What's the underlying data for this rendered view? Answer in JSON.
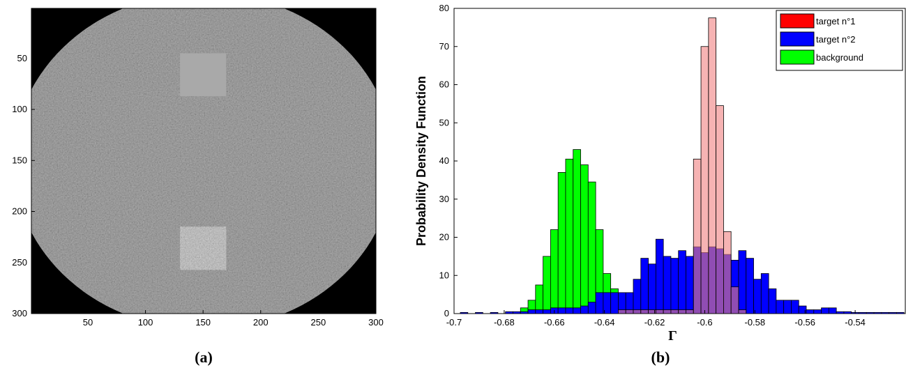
{
  "panel_a": {
    "caption": "(a)",
    "x_ticks": [
      "50",
      "100",
      "150",
      "200",
      "250",
      "300"
    ],
    "y_ticks": [
      "50",
      "100",
      "150",
      "200",
      "250",
      "300"
    ],
    "image_extent": [
      1,
      300
    ],
    "disk_radius": 165,
    "target_squares": [
      {
        "name": "target n°1",
        "x_range": [
          130,
          170
        ],
        "y_range": [
          45,
          87
        ]
      },
      {
        "name": "target n°2",
        "x_range": [
          130,
          170
        ],
        "y_range": [
          215,
          257
        ]
      }
    ]
  },
  "panel_b": {
    "caption": "(b)"
  },
  "chart_data": {
    "type": "bar",
    "xlabel": "Γ",
    "ylabel": "Probability Density Function",
    "xlim": [
      -0.7,
      -0.52
    ],
    "ylim": [
      0,
      80
    ],
    "x_ticks": [
      "-0.7",
      "-0.68",
      "-0.66",
      "-0.64",
      "-0.62",
      "-0.6",
      "-0.58",
      "-0.56",
      "-0.54"
    ],
    "y_ticks": [
      "0",
      "10",
      "20",
      "30",
      "40",
      "50",
      "60",
      "70",
      "80"
    ],
    "bin_width": 0.003,
    "legend_position": "top-right",
    "series": [
      {
        "name": "target n°1",
        "color": "#ff0000",
        "fill": "#f08080",
        "x": [
          -0.633,
          -0.63,
          -0.627,
          -0.624,
          -0.621,
          -0.618,
          -0.615,
          -0.612,
          -0.609,
          -0.606,
          -0.603,
          -0.6,
          -0.597,
          -0.594,
          -0.591,
          -0.588,
          -0.585
        ],
        "values": [
          1,
          1,
          1,
          1,
          1,
          1,
          1,
          1,
          1,
          1,
          40.5,
          70,
          77.5,
          54.5,
          21.5,
          7,
          1
        ]
      },
      {
        "name": "target n°2",
        "color": "#0000ff",
        "fill": "#0000ff",
        "x": [
          -0.696,
          -0.69,
          -0.684,
          -0.678,
          -0.675,
          -0.672,
          -0.669,
          -0.666,
          -0.663,
          -0.66,
          -0.657,
          -0.654,
          -0.651,
          -0.648,
          -0.645,
          -0.642,
          -0.639,
          -0.636,
          -0.633,
          -0.63,
          -0.627,
          -0.624,
          -0.621,
          -0.618,
          -0.615,
          -0.612,
          -0.609,
          -0.606,
          -0.603,
          -0.6,
          -0.597,
          -0.594,
          -0.591,
          -0.588,
          -0.585,
          -0.582,
          -0.579,
          -0.576,
          -0.573,
          -0.57,
          -0.567,
          -0.564,
          -0.561,
          -0.558,
          -0.555,
          -0.552,
          -0.549,
          -0.546,
          -0.543,
          -0.54,
          -0.537,
          -0.534,
          -0.531,
          -0.528,
          -0.525,
          -0.522
        ],
        "values": [
          0.3,
          0.3,
          0.3,
          0.5,
          0.5,
          0.5,
          1,
          1,
          1,
          1.5,
          1.5,
          1.5,
          1.5,
          2,
          3,
          5.5,
          5.5,
          5.5,
          5.5,
          5.5,
          9,
          14.5,
          13,
          19.5,
          15,
          14.5,
          16.5,
          15,
          17.5,
          16,
          17.5,
          17,
          15.5,
          14,
          16.5,
          14.5,
          9,
          10.5,
          6.5,
          3.5,
          3.5,
          3.5,
          2,
          1,
          1,
          1.5,
          1.5,
          0.5,
          0.5,
          0.3,
          0.3,
          0.3,
          0.3,
          0.3,
          0.3,
          0.3
        ]
      },
      {
        "name": "background",
        "color": "#00ff00",
        "fill": "#00ff00",
        "x": [
          -0.672,
          -0.669,
          -0.666,
          -0.663,
          -0.66,
          -0.657,
          -0.654,
          -0.651,
          -0.648,
          -0.645,
          -0.642,
          -0.639,
          -0.636
        ],
        "values": [
          1.5,
          3.5,
          7.5,
          15,
          22,
          37,
          40.5,
          43,
          39,
          34.5,
          22,
          10.5,
          6.5
        ]
      }
    ]
  }
}
